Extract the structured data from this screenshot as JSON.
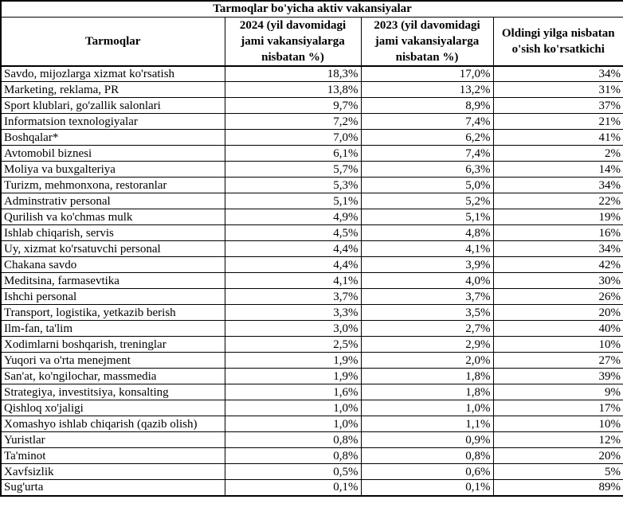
{
  "colors": {
    "border": "#000000",
    "background": "#ffffff",
    "text": "#000000"
  },
  "chart_data": {
    "type": "table",
    "title": "Tarmoqlar bo'yicha aktiv vakansiyalar",
    "columns": [
      "Tarmoqlar",
      "2024 (yil davomidagi jami vakansiyalarga nisbatan %)",
      "2023 (yil davomidagi jami vakansiyalarga nisbatan %)",
      "Oldingi yilga nisbatan o'sish ko'rsatkichi"
    ],
    "rows": [
      {
        "sector": "Savdo, mijozlarga xizmat ko'rsatish",
        "share_2024": "18,3%",
        "share_2023": "17,0%",
        "growth": "34%"
      },
      {
        "sector": "Marketing, reklama, PR",
        "share_2024": "13,8%",
        "share_2023": "13,2%",
        "growth": "31%"
      },
      {
        "sector": "Sport klublari, go'zallik salonlari",
        "share_2024": "9,7%",
        "share_2023": "8,9%",
        "growth": "37%"
      },
      {
        "sector": "Informatsion texnologiyalar",
        "share_2024": "7,2%",
        "share_2023": "7,4%",
        "growth": "21%"
      },
      {
        "sector": "Boshqalar*",
        "share_2024": "7,0%",
        "share_2023": "6,2%",
        "growth": "41%"
      },
      {
        "sector": "Avtomobil biznesi",
        "share_2024": "6,1%",
        "share_2023": "7,4%",
        "growth": "2%"
      },
      {
        "sector": "Moliya va buxgalteriya",
        "share_2024": "5,7%",
        "share_2023": "6,3%",
        "growth": "14%"
      },
      {
        "sector": "Turizm, mehmonxona, restoranlar",
        "share_2024": "5,3%",
        "share_2023": "5,0%",
        "growth": "34%"
      },
      {
        "sector": "Adminstrativ personal",
        "share_2024": "5,1%",
        "share_2023": "5,2%",
        "growth": "22%"
      },
      {
        "sector": "Qurilish va ko'chmas mulk",
        "share_2024": "4,9%",
        "share_2023": "5,1%",
        "growth": "19%"
      },
      {
        "sector": "Ishlab chiqarish, servis",
        "share_2024": "4,5%",
        "share_2023": "4,8%",
        "growth": "16%"
      },
      {
        "sector": "Uy, xizmat ko'rsatuvchi personal",
        "share_2024": "4,4%",
        "share_2023": "4,1%",
        "growth": "34%"
      },
      {
        "sector": "Chakana savdo",
        "share_2024": "4,4%",
        "share_2023": "3,9%",
        "growth": "42%"
      },
      {
        "sector": "Meditsina, farmasevtika",
        "share_2024": "4,1%",
        "share_2023": "4,0%",
        "growth": "30%"
      },
      {
        "sector": "Ishchi personal",
        "share_2024": "3,7%",
        "share_2023": "3,7%",
        "growth": "26%"
      },
      {
        "sector": "Transport, logistika, yetkazib berish",
        "share_2024": "3,3%",
        "share_2023": "3,5%",
        "growth": "20%"
      },
      {
        "sector": "Ilm-fan, ta'lim",
        "share_2024": "3,0%",
        "share_2023": "2,7%",
        "growth": "40%"
      },
      {
        "sector": "Xodimlarni boshqarish, treninglar",
        "share_2024": "2,5%",
        "share_2023": "2,9%",
        "growth": "10%"
      },
      {
        "sector": "Yuqori va o'rta menejment",
        "share_2024": "1,9%",
        "share_2023": "2,0%",
        "growth": "27%"
      },
      {
        "sector": "San'at, ko'ngilochar, massmedia",
        "share_2024": "1,9%",
        "share_2023": "1,8%",
        "growth": "39%"
      },
      {
        "sector": "Strategiya, investitsiya, konsalting",
        "share_2024": "1,6%",
        "share_2023": "1,8%",
        "growth": "9%"
      },
      {
        "sector": "Qishloq xo'jaligi",
        "share_2024": "1,0%",
        "share_2023": "1,0%",
        "growth": "17%"
      },
      {
        "sector": "Xomashyo ishlab chiqarish (qazib olish)",
        "share_2024": "1,0%",
        "share_2023": "1,1%",
        "growth": "10%"
      },
      {
        "sector": "Yuristlar",
        "share_2024": "0,8%",
        "share_2023": "0,9%",
        "growth": "12%"
      },
      {
        "sector": "Ta'minot",
        "share_2024": "0,8%",
        "share_2023": "0,8%",
        "growth": "20%"
      },
      {
        "sector": "Xavfsizlik",
        "share_2024": "0,5%",
        "share_2023": "0,6%",
        "growth": "5%"
      },
      {
        "sector": "Sug'urta",
        "share_2024": "0,1%",
        "share_2023": "0,1%",
        "growth": "89%"
      }
    ]
  }
}
